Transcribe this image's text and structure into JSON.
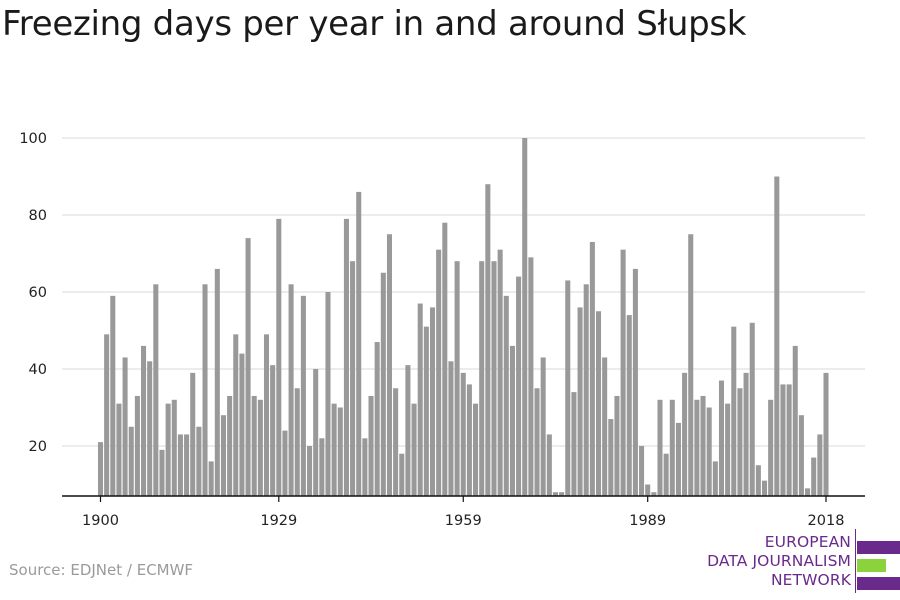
{
  "title": "Freezing days per year in and around Słupsk",
  "source": "Source: EDJNet / ECMWF",
  "logo": {
    "lines": [
      "EUROPEAN",
      "DATA JOURNALISM",
      "NETWORK"
    ],
    "colors": {
      "purple": "#6a2a8c",
      "green": "#8cd23c"
    }
  },
  "chart_data": {
    "type": "bar",
    "title": "Freezing days per year in and around Słupsk",
    "xlabel": "",
    "ylabel": "",
    "bar_color": "#999999",
    "x_ticks": [
      1900,
      1929,
      1959,
      1989,
      2018
    ],
    "y_ticks": [
      20,
      40,
      60,
      80,
      100
    ],
    "ylim": [
      7,
      100
    ],
    "grid": true,
    "x": [
      1900,
      1901,
      1902,
      1903,
      1904,
      1905,
      1906,
      1907,
      1908,
      1909,
      1910,
      1911,
      1912,
      1913,
      1914,
      1915,
      1916,
      1917,
      1918,
      1919,
      1920,
      1921,
      1922,
      1923,
      1924,
      1925,
      1926,
      1927,
      1928,
      1929,
      1930,
      1931,
      1932,
      1933,
      1934,
      1935,
      1936,
      1937,
      1938,
      1939,
      1940,
      1941,
      1942,
      1943,
      1944,
      1945,
      1946,
      1947,
      1948,
      1949,
      1950,
      1951,
      1952,
      1953,
      1954,
      1955,
      1956,
      1957,
      1958,
      1959,
      1960,
      1961,
      1962,
      1963,
      1964,
      1965,
      1966,
      1967,
      1968,
      1969,
      1970,
      1971,
      1972,
      1973,
      1974,
      1975,
      1976,
      1977,
      1978,
      1979,
      1980,
      1981,
      1982,
      1983,
      1984,
      1985,
      1986,
      1987,
      1988,
      1989,
      1990,
      1991,
      1992,
      1993,
      1994,
      1995,
      1996,
      1997,
      1998,
      1999,
      2000,
      2001,
      2002,
      2003,
      2004,
      2005,
      2006,
      2007,
      2008,
      2009,
      2010,
      2011,
      2012,
      2013,
      2014,
      2015,
      2016,
      2017,
      2018
    ],
    "values": [
      21,
      49,
      59,
      31,
      43,
      25,
      33,
      46,
      42,
      62,
      19,
      31,
      32,
      23,
      23,
      39,
      25,
      62,
      16,
      66,
      28,
      33,
      49,
      44,
      74,
      33,
      32,
      49,
      41,
      79,
      24,
      62,
      35,
      59,
      20,
      40,
      22,
      60,
      31,
      30,
      79,
      68,
      86,
      22,
      33,
      47,
      65,
      75,
      35,
      18,
      41,
      31,
      57,
      51,
      56,
      71,
      78,
      42,
      68,
      39,
      36,
      31,
      68,
      88,
      68,
      71,
      59,
      46,
      64,
      100,
      69,
      35,
      43,
      23,
      8,
      8,
      63,
      34,
      56,
      62,
      73,
      55,
      43,
      27,
      33,
      71,
      54,
      66,
      20,
      10,
      8,
      32,
      18,
      32,
      26,
      39,
      75,
      32,
      33,
      30,
      16,
      37,
      31,
      51,
      35,
      39,
      52,
      15,
      11,
      32,
      90,
      36,
      36,
      46,
      28,
      9,
      17,
      23,
      39
    ]
  }
}
